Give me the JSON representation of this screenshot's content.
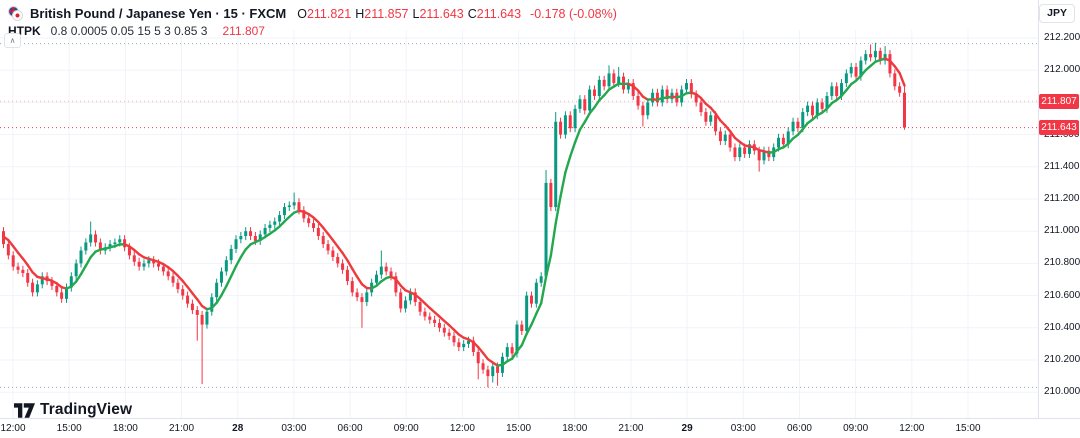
{
  "header": {
    "symbol_title": "British Pound / Japanese Yen",
    "interval": "15",
    "exchange": "FXCM",
    "title_full": "British Pound / Japanese Yen · 15 · FXCM",
    "ohlc": {
      "o_label": "O",
      "o": "211.821",
      "h_label": "H",
      "h": "211.857",
      "l_label": "L",
      "l": "211.643",
      "c_label": "C",
      "c": "211.643",
      "change": "-0.178 (-0.08%)"
    },
    "indicator": {
      "name": "HTPK",
      "params": "0.8 0.0005 0.05 15 5 3 0.85 3",
      "value": "211.807"
    }
  },
  "price_axis": {
    "currency_label": "JPY",
    "ticks": [
      {
        "label": "212.200",
        "price": 212.2
      },
      {
        "label": "212.000",
        "price": 212.0
      },
      {
        "label": "211.800",
        "price": 211.8
      },
      {
        "label": "211.600",
        "price": 211.6
      },
      {
        "label": "211.400",
        "price": 211.4
      },
      {
        "label": "211.200",
        "price": 211.2
      },
      {
        "label": "211.000",
        "price": 211.0
      },
      {
        "label": "210.800",
        "price": 210.8
      },
      {
        "label": "210.600",
        "price": 210.6
      },
      {
        "label": "210.400",
        "price": 210.4
      },
      {
        "label": "210.200",
        "price": 210.2
      },
      {
        "label": "210.000",
        "price": 210.0
      }
    ],
    "badges": [
      {
        "text": "211.807",
        "price": 211.807
      },
      {
        "text": "211.643",
        "price": 211.643
      }
    ]
  },
  "time_axis": {
    "ticks": [
      {
        "label": "12:00"
      },
      {
        "label": "15:00"
      },
      {
        "label": "18:00"
      },
      {
        "label": "21:00"
      },
      {
        "label": "28",
        "bold": true
      },
      {
        "label": "03:00"
      },
      {
        "label": "06:00"
      },
      {
        "label": "09:00"
      },
      {
        "label": "12:00"
      },
      {
        "label": "15:00"
      },
      {
        "label": "18:00"
      },
      {
        "label": "21:00"
      },
      {
        "label": "29",
        "bold": true
      },
      {
        "label": "03:00"
      },
      {
        "label": "06:00"
      },
      {
        "label": "09:00"
      },
      {
        "label": "12:00"
      },
      {
        "label": "15:00"
      }
    ]
  },
  "watermark": {
    "text": "TradingView"
  },
  "colors": {
    "up": "#089981",
    "down": "#f23645",
    "ma_up": "#23a84e",
    "ma_down": "#ef3a3d",
    "grid": "#f0f3fa",
    "axis_text": "#131722",
    "badge_bg": "#f23645",
    "range_line": "#a5a8b1",
    "last_price_line": "#f23645",
    "indicator_line_rgba": "rgba(242,54,69,0.4)"
  },
  "chart_data": {
    "type": "candlestick",
    "symbol": "GBP/JPY",
    "exchange": "FXCM",
    "interval_minutes": 15,
    "title": "British Pound / Japanese Yen · 15 · FXCM",
    "current_bar": {
      "open": 211.821,
      "high": 211.857,
      "low": 211.643,
      "close": 211.643,
      "change": -0.178,
      "change_pct": -0.08
    },
    "y_axis": {
      "min": 210.0,
      "max": 212.2,
      "tick_step": 0.2,
      "unit": "JPY"
    },
    "x_axis_labels": [
      "12:00",
      "15:00",
      "18:00",
      "21:00",
      "28",
      "03:00",
      "06:00",
      "09:00",
      "12:00",
      "15:00",
      "18:00",
      "21:00",
      "29",
      "03:00",
      "06:00",
      "09:00",
      "12:00",
      "15:00"
    ],
    "price_lines": {
      "range_high": 212.165,
      "range_low": 210.03,
      "last_close": 211.643,
      "indicator_value": 211.807
    },
    "overlay_ma": {
      "name": "HTPK",
      "style": "slope-colored",
      "period": 8
    },
    "candles": {
      "first_open": 211.0,
      "default_wick": 0.025,
      "closes": [
        210.92,
        210.85,
        210.78,
        210.76,
        210.74,
        210.68,
        210.62,
        210.67,
        210.72,
        210.69,
        210.66,
        210.62,
        210.58,
        210.65,
        210.72,
        210.8,
        210.88,
        210.93,
        210.98,
        210.93,
        210.88,
        210.9,
        210.92,
        210.93,
        210.95,
        210.9,
        210.85,
        210.81,
        210.78,
        210.8,
        210.82,
        210.8,
        210.78,
        210.75,
        210.72,
        210.68,
        210.64,
        210.6,
        210.55,
        210.51,
        210.48,
        210.42,
        210.5,
        210.59,
        210.68,
        210.75,
        210.82,
        210.89,
        210.95,
        210.97,
        211.0,
        210.97,
        210.94,
        210.98,
        211.02,
        211.04,
        211.06,
        211.1,
        211.15,
        211.16,
        211.18,
        211.13,
        211.08,
        211.05,
        211.02,
        210.97,
        210.92,
        210.88,
        210.84,
        210.8,
        210.76,
        210.69,
        210.62,
        210.59,
        210.56,
        210.62,
        210.68,
        210.73,
        210.78,
        210.75,
        210.72,
        210.62,
        210.52,
        210.57,
        210.62,
        210.56,
        210.5,
        210.47,
        210.45,
        210.43,
        210.4,
        210.37,
        210.35,
        210.31,
        210.28,
        210.3,
        210.32,
        210.25,
        210.18,
        210.14,
        210.1,
        210.16,
        210.12,
        210.22,
        210.28,
        210.24,
        210.42,
        210.38,
        210.6,
        210.55,
        210.68,
        210.72,
        211.3,
        211.15,
        211.68,
        211.6,
        211.72,
        211.64,
        211.76,
        211.82,
        211.75,
        211.88,
        211.84,
        211.94,
        211.9,
        211.98,
        211.92,
        211.96,
        211.88,
        211.92,
        211.84,
        211.78,
        211.72,
        211.8,
        211.86,
        211.8,
        211.88,
        211.82,
        211.86,
        211.8,
        211.88,
        211.92,
        211.85,
        211.8,
        211.74,
        211.68,
        211.72,
        211.62,
        211.56,
        211.6,
        211.52,
        211.46,
        211.52,
        211.48,
        211.54,
        211.5,
        211.44,
        211.5,
        211.46,
        211.52,
        211.58,
        211.54,
        211.62,
        211.68,
        211.64,
        211.74,
        211.78,
        211.72,
        211.8,
        211.76,
        211.84,
        211.9,
        211.84,
        211.92,
        211.98,
        212.02,
        211.96,
        212.06,
        212.1,
        212.08,
        212.12,
        212.06,
        212.1,
        211.98,
        211.9,
        211.86,
        211.643
      ],
      "wick_overrides": {
        "18": {
          "h": 211.06
        },
        "40": {
          "l": 210.32
        },
        "41": {
          "l": 210.05
        },
        "60": {
          "h": 211.24
        },
        "74": {
          "l": 210.4
        },
        "78": {
          "h": 210.88
        },
        "98": {
          "l": 210.08
        },
        "100": {
          "l": 210.03
        },
        "101": {
          "l": 210.06
        },
        "102": {
          "l": 210.04
        },
        "112": {
          "h": 211.38,
          "l": 210.7
        },
        "114": {
          "h": 211.74
        },
        "125": {
          "h": 212.03
        },
        "127": {
          "h": 212.02
        },
        "132": {
          "l": 211.65
        },
        "156": {
          "l": 211.37
        },
        "179": {
          "h": 212.16
        },
        "180": {
          "h": 212.17
        },
        "181": {
          "h": 212.14
        },
        "182": {
          "h": 212.15
        },
        "186": {
          "h": 211.92,
          "l": 211.63
        }
      }
    }
  }
}
